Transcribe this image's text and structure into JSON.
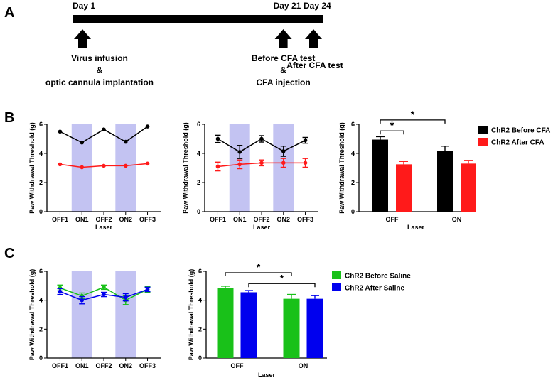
{
  "panels": {
    "a": "A",
    "b": "B",
    "c": "C"
  },
  "timeline": {
    "days": [
      {
        "label": "Day 1",
        "day": 1
      },
      {
        "label": "Day 21",
        "day": 21
      },
      {
        "label": "Day 24",
        "day": 24
      }
    ],
    "events": [
      {
        "day": 1,
        "lines": [
          "Virus infusion",
          "&",
          "optic cannula implantation"
        ]
      },
      {
        "day": 21,
        "lines": [
          "Before CFA test",
          "&",
          "CFA injection"
        ]
      },
      {
        "day": 24,
        "lines": [
          "After CFA test"
        ]
      }
    ]
  },
  "colors": {
    "black": "#000000",
    "red": "#ff1a1a",
    "green": "#19c119",
    "blue": "#0000ee",
    "laser": "#c3c3f2"
  },
  "chart_data": [
    {
      "id": "b1",
      "type": "line",
      "categories": [
        "OFF1",
        "ON1",
        "OFF2",
        "ON2",
        "OFF3"
      ],
      "laser_on": [
        "ON1",
        "ON2"
      ],
      "xlabel": "Laser",
      "ylabel": "Paw Withdrawal Threshold (g)",
      "ylim": [
        0,
        6
      ],
      "yticks": [
        0,
        2,
        4,
        6
      ],
      "series": [
        {
          "name": "ChR2 Before CFA",
          "color": "#000000",
          "values": [
            5.5,
            4.75,
            5.65,
            4.8,
            5.85
          ],
          "err": [
            0,
            0,
            0,
            0,
            0
          ]
        },
        {
          "name": "ChR2 After CFA",
          "color": "#ff1a1a",
          "values": [
            3.25,
            3.05,
            3.15,
            3.15,
            3.3
          ],
          "err": [
            0,
            0,
            0,
            0,
            0
          ]
        }
      ]
    },
    {
      "id": "b2",
      "type": "line",
      "categories": [
        "OFF1",
        "ON1",
        "OFF2",
        "ON2",
        "OFF3"
      ],
      "laser_on": [
        "ON1",
        "ON2"
      ],
      "xlabel": "Laser",
      "ylabel": "Paw Withdrawal Threshold (g)",
      "ylim": [
        0,
        6
      ],
      "yticks": [
        0,
        2,
        4,
        6
      ],
      "series": [
        {
          "name": "ChR2 Before CFA",
          "color": "#000000",
          "values": [
            5.0,
            4.1,
            5.0,
            4.15,
            4.9
          ],
          "err": [
            0.25,
            0.45,
            0.22,
            0.35,
            0.2
          ]
        },
        {
          "name": "ChR2 After CFA",
          "color": "#ff1a1a",
          "values": [
            3.1,
            3.25,
            3.35,
            3.35,
            3.35
          ],
          "err": [
            0.3,
            0.3,
            0.2,
            0.3,
            0.3
          ]
        }
      ]
    },
    {
      "id": "b3",
      "type": "bar",
      "categories": [
        "OFF",
        "ON"
      ],
      "xlabel": "Laser",
      "ylabel": "Paw Withdrawal Threshold (g)",
      "ylim": [
        0,
        6
      ],
      "yticks": [
        0,
        2,
        4,
        6
      ],
      "series": [
        {
          "name": "ChR2 Before CFA",
          "color": "#000000",
          "values": [
            4.95,
            4.15
          ],
          "err": [
            0.2,
            0.35
          ]
        },
        {
          "name": "ChR2 After CFA",
          "color": "#ff1a1a",
          "values": [
            3.25,
            3.3
          ],
          "err": [
            0.2,
            0.22
          ]
        }
      ],
      "significance": [
        {
          "label": "*",
          "from": [
            0,
            0
          ],
          "to": [
            0,
            1
          ],
          "y": 5.55
        },
        {
          "label": "*",
          "from": [
            0,
            0
          ],
          "to": [
            1,
            0
          ],
          "y": 6.3
        }
      ],
      "legend": "right"
    },
    {
      "id": "c1",
      "type": "line",
      "categories": [
        "OFF1",
        "ON1",
        "OFF2",
        "ON2",
        "OFF3"
      ],
      "laser_on": [
        "ON1",
        "ON2"
      ],
      "xlabel": "",
      "ylabel": "Paw Withdrawal Threshold (g)",
      "ylim": [
        0,
        6
      ],
      "yticks": [
        0,
        2,
        4,
        6
      ],
      "series": [
        {
          "name": "ChR2 Before Saline",
          "color": "#19c119",
          "values": [
            4.85,
            4.3,
            4.9,
            4.0,
            4.75
          ],
          "err": [
            0.2,
            0.2,
            0.15,
            0.3,
            0.2
          ]
        },
        {
          "name": "ChR2 After Saline",
          "color": "#0000ee",
          "values": [
            4.6,
            4.0,
            4.4,
            4.2,
            4.75
          ],
          "err": [
            0.2,
            0.25,
            0.15,
            0.25,
            0.15
          ]
        }
      ]
    },
    {
      "id": "c2",
      "type": "bar",
      "categories": [
        "OFF",
        "ON"
      ],
      "xlabel": "Laser",
      "ylabel": "Paw Withdrawal Threshold (g)",
      "ylim": [
        0,
        6
      ],
      "yticks": [
        0,
        2,
        4,
        6
      ],
      "series": [
        {
          "name": "ChR2 Before Saline",
          "color": "#19c119",
          "values": [
            4.85,
            4.1
          ],
          "err": [
            0.12,
            0.3
          ]
        },
        {
          "name": "ChR2 After Saline",
          "color": "#0000ee",
          "values": [
            4.55,
            4.1
          ],
          "err": [
            0.12,
            0.22
          ]
        }
      ],
      "significance": [
        {
          "label": "*",
          "from": [
            0,
            0
          ],
          "to": [
            1,
            0
          ],
          "y": 5.9
        },
        {
          "label": "*",
          "from": [
            0,
            1
          ],
          "to": [
            1,
            1
          ],
          "y": 5.15
        }
      ],
      "legend": "right"
    }
  ]
}
